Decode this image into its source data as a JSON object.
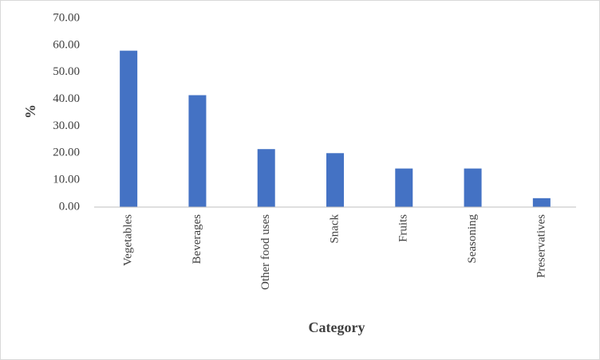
{
  "chart_data": {
    "type": "bar",
    "x_label": "Category",
    "y_label": "%",
    "categories": [
      "Vegetables",
      "Beverages",
      "Other food uses",
      "Snack",
      "Fruits",
      "Seasoning",
      "Preservatives"
    ],
    "values": [
      58,
      41.5,
      21.5,
      20,
      14.3,
      14.3,
      3.3
    ],
    "color": "#4472c4",
    "ylim": [
      0,
      70
    ],
    "yticks": [
      {
        "value": 0,
        "label": "0.00"
      },
      {
        "value": 10,
        "label": "10.00"
      },
      {
        "value": 20,
        "label": "20.00"
      },
      {
        "value": 30,
        "label": "30.00"
      },
      {
        "value": 40,
        "label": "40.00"
      },
      {
        "value": 50,
        "label": "50.00"
      },
      {
        "value": 60,
        "label": "60.00"
      },
      {
        "value": 70,
        "label": "70.00"
      }
    ],
    "grid": false
  }
}
